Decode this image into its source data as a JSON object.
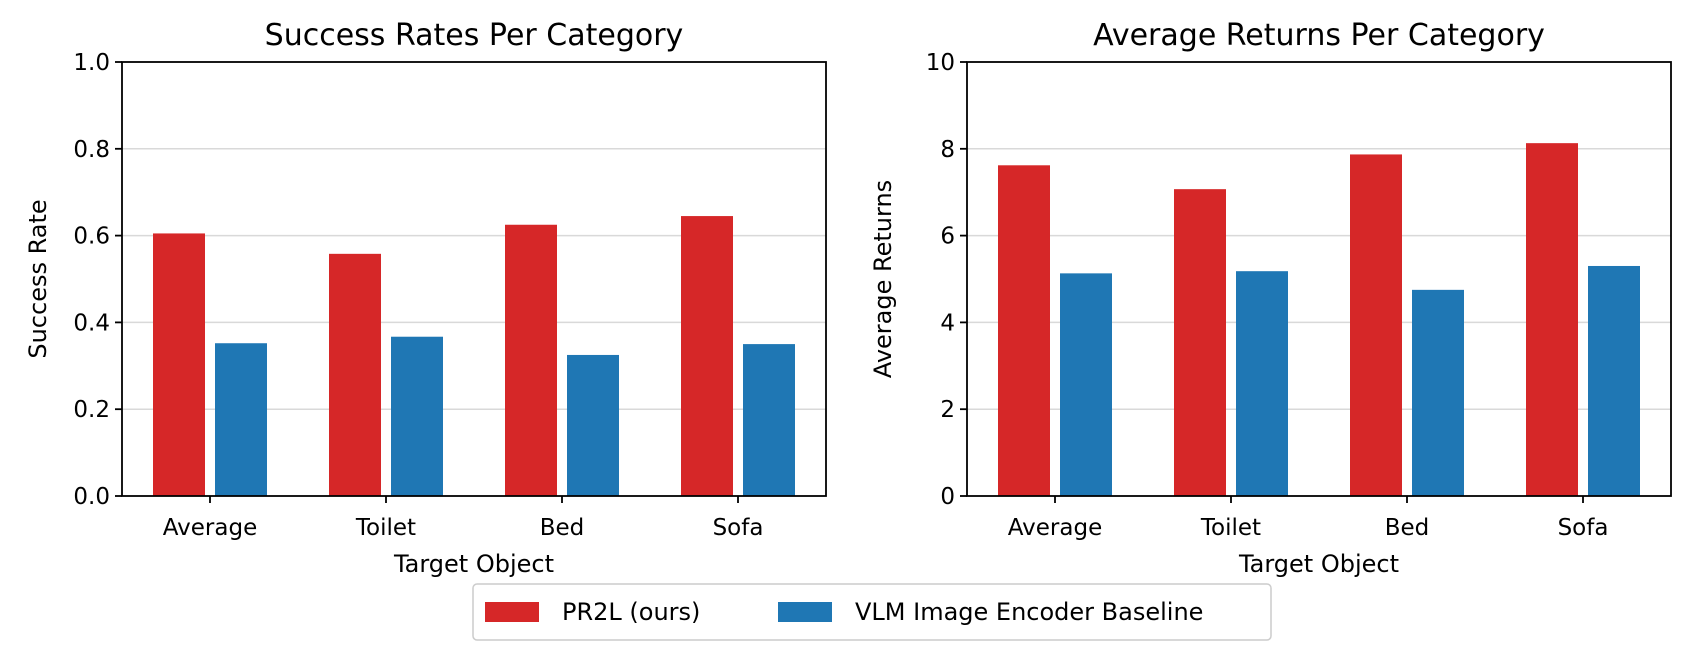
{
  "chart_data": [
    {
      "type": "bar",
      "title": "Success Rates Per Category",
      "xlabel": "Target Object",
      "ylabel": "Success Rate",
      "categories": [
        "Average",
        "Toilet",
        "Bed",
        "Sofa"
      ],
      "ylim": [
        0,
        1.0
      ],
      "yticks": [
        "0.0",
        "0.2",
        "0.4",
        "0.6",
        "0.8",
        "1.0"
      ],
      "grid": true,
      "series": [
        {
          "name": "PR2L (ours)",
          "color": "#d62728",
          "values": [
            0.605,
            0.558,
            0.625,
            0.645
          ]
        },
        {
          "name": "VLM Image Encoder Baseline",
          "color": "#1f77b4",
          "values": [
            0.352,
            0.367,
            0.325,
            0.35
          ]
        }
      ]
    },
    {
      "type": "bar",
      "title": "Average Returns Per Category",
      "xlabel": "Target Object",
      "ylabel": "Average Returns",
      "categories": [
        "Average",
        "Toilet",
        "Bed",
        "Sofa"
      ],
      "ylim": [
        0,
        10
      ],
      "yticks": [
        "0",
        "2",
        "4",
        "6",
        "8",
        "10"
      ],
      "grid": true,
      "series": [
        {
          "name": "PR2L (ours)",
          "color": "#d62728",
          "values": [
            7.62,
            7.07,
            7.87,
            8.13
          ]
        },
        {
          "name": "VLM Image Encoder Baseline",
          "color": "#1f77b4",
          "values": [
            5.13,
            5.18,
            4.75,
            5.3
          ]
        }
      ]
    }
  ],
  "legend": {
    "placement": "bottom-center",
    "entries": [
      {
        "label": "PR2L (ours)",
        "color": "#d62728"
      },
      {
        "label": "VLM Image Encoder Baseline",
        "color": "#1f77b4"
      }
    ]
  }
}
